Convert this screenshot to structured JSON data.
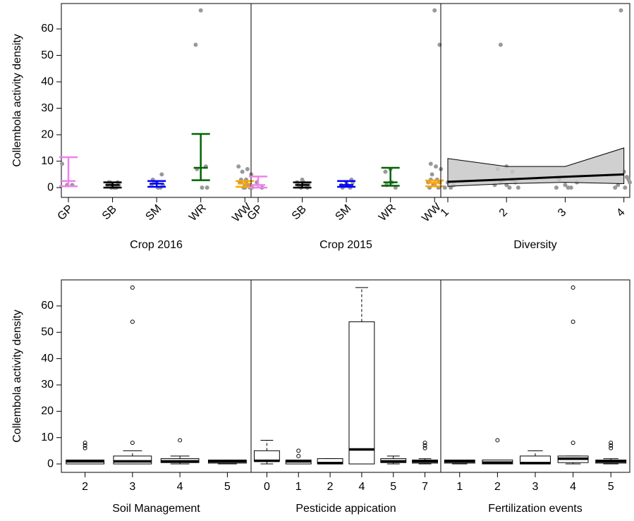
{
  "chart_data": [
    {
      "type": "errorbar",
      "xlabel": "Crop 2016",
      "ylabel": "Collembola activity density",
      "categories": [
        "GP",
        "SB",
        "SM",
        "WR",
        "WW"
      ],
      "colors": [
        "#ee82ee",
        "#000000",
        "#0000ff",
        "#006400",
        "#ffa500"
      ],
      "means": [
        2.5,
        1,
        1.5,
        7.5,
        1.5
      ],
      "lower": [
        0.5,
        0,
        0.3,
        2.8,
        0.3
      ],
      "upper": [
        11.5,
        2,
        2.5,
        20.3,
        2.5
      ],
      "points": [
        [
          9,
          1,
          1
        ],
        [
          0,
          0,
          1,
          1,
          2,
          2,
          0,
          1,
          2,
          0
        ],
        [
          0,
          1,
          2,
          5,
          3,
          0,
          1,
          2
        ],
        [
          54,
          67,
          8,
          7,
          0,
          0
        ],
        [
          0,
          1,
          2,
          3,
          5,
          6,
          7,
          8,
          0,
          1,
          2,
          1,
          0,
          3,
          2
        ]
      ],
      "point_color": "#999999",
      "ylim": [
        -3.7,
        69.6
      ],
      "yticks": [
        0,
        10,
        20,
        30,
        40,
        50,
        60
      ]
    },
    {
      "type": "errorbar",
      "xlabel": "Crop 2015",
      "categories": [
        "GP",
        "SB",
        "SM",
        "WR",
        "WW"
      ],
      "colors": [
        "#ee82ee",
        "#000000",
        "#0000ff",
        "#006400",
        "#ffa500"
      ],
      "means": [
        1,
        1,
        1,
        2,
        1.8
      ],
      "lower": [
        0,
        0,
        0.3,
        0.7,
        0.5
      ],
      "upper": [
        4.2,
        2,
        2.5,
        7.5,
        2.7
      ],
      "points": [
        [
          0,
          2,
          0
        ],
        [
          0,
          1,
          2,
          3,
          0,
          1,
          2,
          1
        ],
        [
          0,
          1,
          2,
          3,
          0,
          1,
          2
        ],
        [
          6,
          7,
          0,
          1,
          2
        ],
        [
          67,
          54,
          9,
          8,
          7,
          5,
          3,
          2,
          1,
          0,
          0,
          1,
          2,
          3
        ]
      ],
      "point_color": "#999999",
      "ylim": [
        -3.7,
        69.6
      ]
    },
    {
      "type": "line",
      "xlabel": "Diversity",
      "x": [
        1,
        2,
        3,
        4
      ],
      "values": [
        2.2,
        3.1,
        4.1,
        5
      ],
      "lower": [
        0.5,
        1.5,
        2,
        1.5
      ],
      "upper": [
        11,
        8,
        8,
        15
      ],
      "band_color": "#c8c8c8",
      "color": "#000000",
      "points_x": [
        0.95,
        1.05,
        1.1,
        1.0,
        1.9,
        1.85,
        2.0,
        2.1,
        1.95,
        2.15,
        1.8,
        2.05,
        2.2,
        1.9,
        2.1,
        2.0,
        2.85,
        3.1,
        3.0,
        3.2,
        2.9,
        3.05,
        3.95,
        4.0,
        4.05,
        4.1,
        3.9,
        4.02,
        3.85,
        4.08
      ],
      "points_y": [
        0,
        0,
        1,
        2,
        54,
        7,
        8,
        6,
        3,
        2,
        1,
        0,
        0,
        2,
        3,
        1,
        0,
        0,
        1,
        2,
        3,
        0,
        67,
        6,
        4,
        2,
        1,
        0,
        0,
        3
      ],
      "point_color": "#999999",
      "xlim": [
        0.88,
        4.1
      ],
      "xticks": [
        1,
        2,
        3,
        4
      ],
      "ylim": [
        -3.7,
        69.6
      ]
    },
    {
      "type": "box",
      "xlabel": "Soil Management",
      "ylabel": "Collembola activity density",
      "categories": [
        "2",
        "3",
        "4",
        "5"
      ],
      "min": [
        0,
        0,
        0,
        0
      ],
      "q1": [
        0,
        0,
        0.5,
        0.3
      ],
      "median": [
        1,
        1,
        1,
        1
      ],
      "q3": [
        1.5,
        3,
        2,
        1.5
      ],
      "max": [
        1.5,
        5,
        3,
        1.5
      ],
      "outliers": [
        [
          6,
          7,
          8
        ],
        [
          8,
          54,
          67
        ],
        [
          9
        ],
        []
      ],
      "ylim": [
        -3.2,
        69.9
      ],
      "yticks": [
        0,
        10,
        20,
        30,
        40,
        50,
        60
      ]
    },
    {
      "type": "box",
      "xlabel": "Pesticide appication",
      "categories": [
        "0",
        "1",
        "2",
        "4",
        "5",
        "7"
      ],
      "min": [
        0,
        0,
        0,
        0,
        0,
        0
      ],
      "q1": [
        1,
        0,
        0,
        0,
        0.5,
        0.3
      ],
      "median": [
        1.2,
        1,
        0.3,
        5.5,
        1,
        1
      ],
      "q3": [
        5,
        1.5,
        2,
        54,
        2,
        1.5
      ],
      "max": [
        9,
        1.5,
        2,
        67,
        3,
        2
      ],
      "outliers": [
        [],
        [
          3,
          5
        ],
        [],
        [],
        [],
        [
          6,
          7,
          8
        ]
      ],
      "ylim": [
        -3.2,
        69.9
      ]
    },
    {
      "type": "box",
      "xlabel": "Fertilization events",
      "categories": [
        "1",
        "2",
        "3",
        "4",
        "5"
      ],
      "min": [
        0,
        0,
        0,
        0,
        0
      ],
      "q1": [
        0.3,
        0,
        0,
        0.5,
        0.3
      ],
      "median": [
        1,
        0.5,
        0.3,
        2,
        1
      ],
      "q3": [
        1.5,
        1.5,
        3,
        3,
        1.5
      ],
      "max": [
        1.5,
        1.5,
        5,
        3,
        2
      ],
      "outliers": [
        [],
        [
          9
        ],
        [],
        [
          8,
          54,
          67
        ],
        [
          6,
          7,
          8
        ]
      ],
      "ylim": [
        -3.2,
        69.9
      ]
    }
  ]
}
